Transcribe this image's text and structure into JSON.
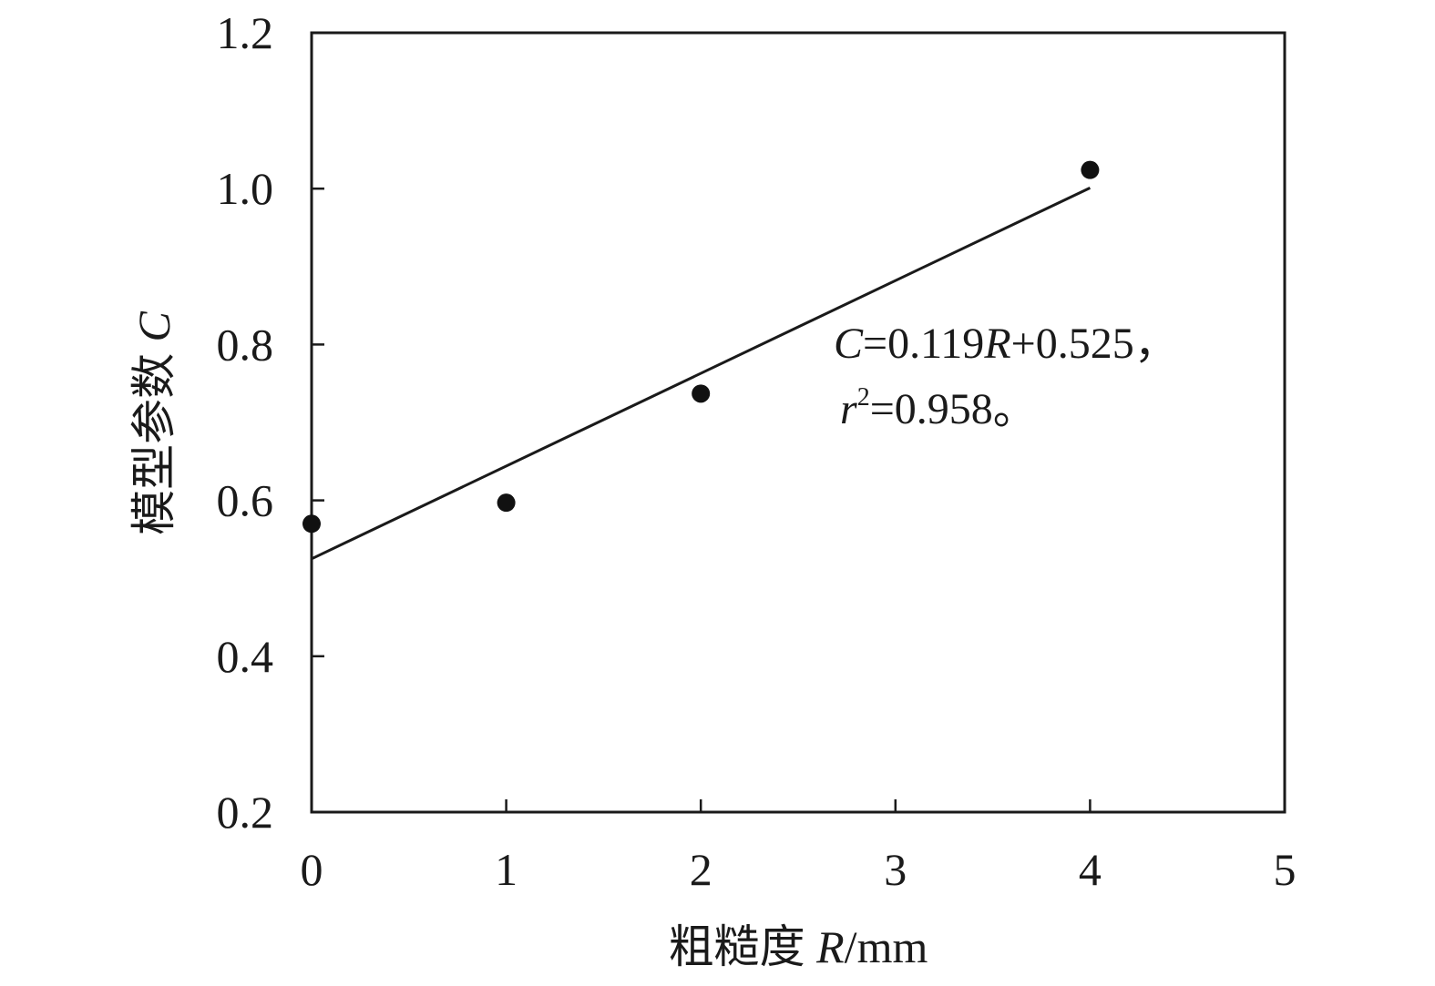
{
  "chart_data": {
    "type": "scatter",
    "title": "",
    "xlabel": {
      "prefix": "粗糙度 ",
      "var": "R",
      "unit": "/mm"
    },
    "ylabel": {
      "prefix": "模型参数 ",
      "var": "C"
    },
    "xlim": [
      0,
      5
    ],
    "ylim": [
      0.2,
      1.2
    ],
    "x_ticks": [
      "0",
      "1",
      "2",
      "3",
      "4",
      "5"
    ],
    "y_ticks": [
      "0.2",
      "0.4",
      "0.6",
      "0.8",
      "1.0",
      "1.2"
    ],
    "grid": false,
    "legend": "none",
    "series": [
      {
        "points": [
          {
            "x": 0,
            "y": 0.57
          },
          {
            "x": 1,
            "y": 0.597
          },
          {
            "x": 2,
            "y": 0.737
          },
          {
            "x": 4,
            "y": 1.024
          }
        ]
      }
    ],
    "fit_line": {
      "slope": 0.119,
      "intercept": 0.525,
      "x_range": [
        0,
        4
      ]
    },
    "annotation": {
      "line1": {
        "var1": "C",
        "mid": "=0.119",
        "var2": "R",
        "tail": "+0.525，"
      },
      "line2": {
        "var": "r",
        "sup": "2",
        "tail": "=0.958。"
      }
    },
    "colors": {
      "axis": "#1a1a1a",
      "marker": "#111111",
      "line": "#1a1a1a"
    }
  }
}
